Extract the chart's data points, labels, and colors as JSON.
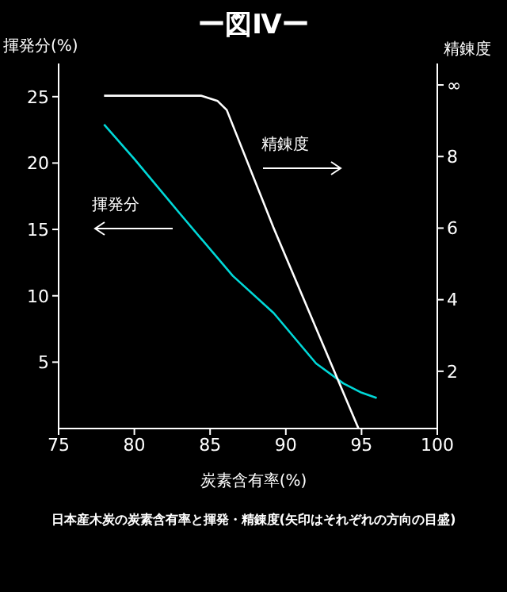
{
  "chart_data": {
    "type": "line",
    "title": "ー図Ⅳー",
    "xlabel": "炭素含有率(%)",
    "ylabel": "揮発分(%)",
    "y2label": "精錬度",
    "annotations": [
      "日本産木炭の炭素含有率と揮発・精錬度(矢印はそれぞれの方向の目盛)"
    ],
    "xlim": [
      75,
      100
    ],
    "xticks": [
      75,
      80,
      85,
      90,
      95,
      100
    ],
    "ylim": [
      0,
      27.5
    ],
    "yticks": [
      5,
      10,
      15,
      20,
      25
    ],
    "y2lim": [
      0.4,
      10.6
    ],
    "y2ticks": [
      2,
      4,
      6,
      8,
      {
        "value": 10,
        "label": "∞"
      }
    ],
    "marker": "none",
    "line_style": "solid",
    "series": [
      {
        "name": "揮発分",
        "color": "#00d8d8",
        "x": [
          78,
          80,
          83,
          86.5,
          89.2,
          92,
          93.8,
          95,
          96
        ],
        "values": [
          22.9,
          20.3,
          16.2,
          11.5,
          8.7,
          4.9,
          3.4,
          2.7,
          2.3
        ]
      },
      {
        "name": "精錬度",
        "color": "#ffffff",
        "axis": "y2",
        "x": [
          78,
          80,
          84.4,
          85.5,
          86.1,
          89.2,
          92,
          94.8
        ],
        "values": [
          9.7,
          9.7,
          9.7,
          9.55,
          9.3,
          6,
          3.2,
          0.4
        ]
      }
    ]
  }
}
